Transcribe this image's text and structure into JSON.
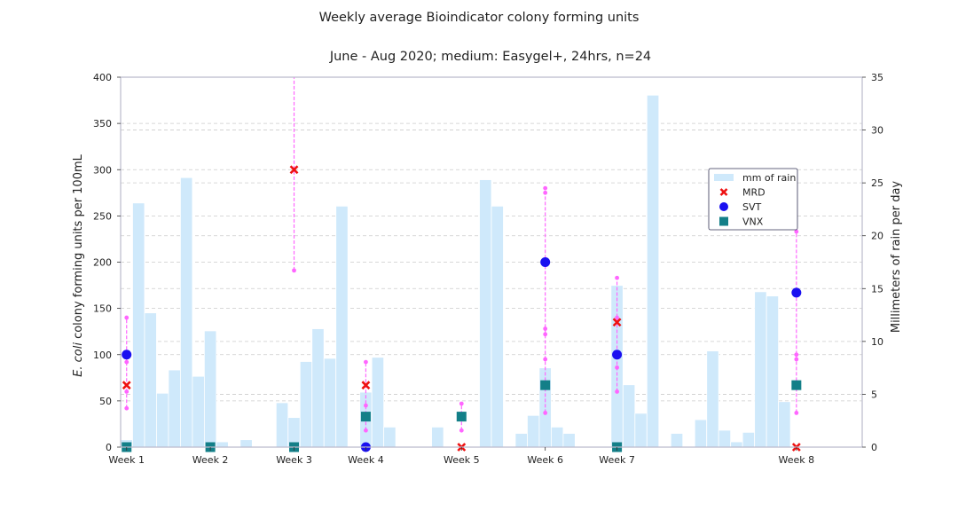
{
  "chart_data": {
    "type": "bar",
    "title": "Weekly average Bioindicator colony forming units",
    "subtitle": "June - Aug 2020; medium: Easygel+, 24hrs, n=24",
    "ylabel_italic": "E. coli",
    "ylabel_rest": " colony forming units per 100mL",
    "y2label": "Millimeters of rain per day",
    "ylim": [
      0,
      400
    ],
    "y2lim": [
      0,
      35
    ],
    "yticks": [
      "0",
      "50",
      "100",
      "150",
      "200",
      "250",
      "300",
      "350",
      "400"
    ],
    "y2ticks": [
      "0",
      "5",
      "10",
      "15",
      "20",
      "25",
      "30",
      "35"
    ],
    "grid": true,
    "legend_position": "center-right",
    "colors": {
      "rain": "#cfe9fb",
      "mrd": "#ee1111",
      "svt": "#1a10f0",
      "vnx": "#137f88",
      "errorbar": "#ff66ff",
      "grid": "#cccccc",
      "spine": "#bbbbcc"
    },
    "legend": [
      {
        "key": "rain",
        "label": "mm of rain",
        "marker": "rect"
      },
      {
        "key": "mrd",
        "label": "MRD",
        "marker": "x"
      },
      {
        "key": "svt",
        "label": "SVT",
        "marker": "circle"
      },
      {
        "key": "vnx",
        "label": "VNX",
        "marker": "square"
      }
    ],
    "rain_days": 62,
    "rain_mm": [
      0.7,
      23.1,
      12.7,
      5.1,
      7.3,
      25.5,
      6.7,
      11.0,
      0.5,
      0,
      0.7,
      0,
      0,
      4.2,
      2.8,
      8.1,
      11.2,
      8.4,
      22.8,
      0,
      5.2,
      8.5,
      1.9,
      0,
      0,
      0,
      1.9,
      0,
      0,
      0,
      25.3,
      22.8,
      0,
      1.3,
      3.0,
      7.5,
      1.9,
      1.3,
      0,
      0,
      0,
      15.3,
      5.9,
      3.2,
      33.3,
      0,
      1.3,
      0,
      2.6,
      9.1,
      1.6,
      0.5,
      1.4,
      14.7,
      14.3,
      4.3,
      0,
      0,
      0,
      0,
      0,
      0
    ],
    "weeks": [
      {
        "label": "Week 1",
        "day": 0,
        "mrd": 67,
        "svt": 100,
        "vnx": 0,
        "err_low": 42,
        "err_high": 140,
        "err_pts": [
          42,
          60,
          92,
          140
        ]
      },
      {
        "label": "Week 2",
        "day": 7,
        "mrd": null,
        "svt": null,
        "vnx": 0,
        "err_low": null,
        "err_high": null,
        "err_pts": []
      },
      {
        "label": "Week 3",
        "day": 14,
        "mrd": 300,
        "svt": null,
        "vnx": 0,
        "err_low": 191,
        "err_high": 400,
        "err_pts": [
          191
        ]
      },
      {
        "label": "Week 4",
        "day": 20,
        "mrd": 67,
        "svt": 0,
        "vnx": 33,
        "err_low": 18,
        "err_high": 92,
        "err_pts": [
          18,
          45,
          92
        ]
      },
      {
        "label": "Week 5",
        "day": 28,
        "mrd": 0,
        "svt": null,
        "vnx": 33,
        "err_low": 18,
        "err_high": 47,
        "err_pts": [
          18,
          47
        ]
      },
      {
        "label": "Week 6",
        "day": 35,
        "mrd": null,
        "svt": 200,
        "vnx": 67,
        "err_low": 37,
        "err_high": 280,
        "err_pts": [
          37,
          122,
          128,
          95,
          275,
          280
        ]
      },
      {
        "label": "Week 7",
        "day": 41,
        "mrd": 135,
        "svt": 100,
        "vnx": 0,
        "err_low": 60,
        "err_high": 183,
        "err_pts": [
          60,
          86,
          140,
          183
        ]
      },
      {
        "label": "Week 8",
        "day": 56,
        "mrd": 0,
        "svt": 167,
        "vnx": 67,
        "err_low": 37,
        "err_high": 233,
        "err_pts": [
          37,
          95,
          100,
          233
        ]
      }
    ]
  }
}
